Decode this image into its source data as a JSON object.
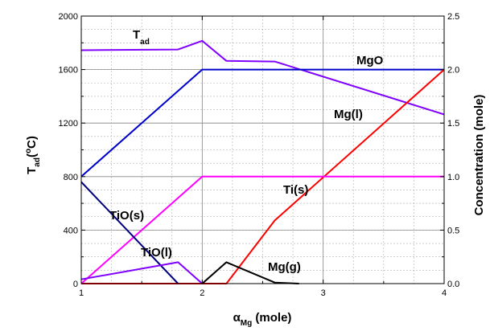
{
  "chart_data": {
    "type": "line",
    "title": "",
    "grid": true,
    "xaxis": {
      "label_main": "α",
      "label_sub": "Mg",
      "label_rest": " (mole)",
      "range": [
        1,
        4
      ],
      "ticks": [
        1,
        2,
        3,
        4
      ],
      "tick_labels": [
        "1",
        "2",
        "3",
        "4"
      ]
    },
    "yaxis_left": {
      "label_main": "T",
      "label_sub": "ad",
      "label_mid": "(",
      "label_sup": "o",
      "label_rest": "C)",
      "range": [
        0,
        2000
      ],
      "ticks": [
        0,
        400,
        800,
        1200,
        1600,
        2000
      ],
      "tick_labels": [
        "0",
        "400",
        "800",
        "1200",
        "1600",
        "2000"
      ]
    },
    "yaxis_right": {
      "label": "Concentration (mole)",
      "range": [
        0,
        2.5
      ],
      "ticks": [
        0,
        0.5,
        1.0,
        1.5,
        2.0,
        2.5
      ],
      "tick_labels": [
        "0.0",
        "0.5",
        "1.0",
        "1.5",
        "2.0",
        "2.5"
      ]
    },
    "series": [
      {
        "key": "tad",
        "label_main": "T",
        "label_sub": "ad",
        "axis": "left",
        "color": "#8000ff",
        "x": [
          1,
          1.8,
          2,
          2.2,
          2.6,
          4
        ],
        "y": [
          1745,
          1750,
          1815,
          1665,
          1660,
          1265
        ]
      },
      {
        "key": "mgo",
        "name": "MgO",
        "axis": "right",
        "color": "#0000cc",
        "x": [
          1,
          2,
          4
        ],
        "y": [
          1.0,
          2.0,
          2.0
        ]
      },
      {
        "key": "mgl",
        "name": "Mg(l)",
        "axis": "right",
        "color": "#ff0000",
        "x": [
          1,
          2.2,
          2.6,
          4
        ],
        "y": [
          0,
          0,
          0.59,
          2.0
        ]
      },
      {
        "key": "tis",
        "name": "Ti(s)",
        "axis": "right",
        "color": "#ff00ff",
        "x": [
          1,
          2,
          4
        ],
        "y": [
          0,
          1.0,
          1.0
        ]
      },
      {
        "key": "tios",
        "name": "TiO(s)",
        "axis": "right",
        "color": "#000080",
        "x": [
          1,
          1.8
        ],
        "y": [
          0.95,
          0
        ]
      },
      {
        "key": "tiol",
        "name": "TiO(l)",
        "axis": "right",
        "color": "#8000ff",
        "x": [
          1,
          1.8,
          2
        ],
        "y": [
          0.04,
          0.2,
          0
        ]
      },
      {
        "key": "mgg",
        "name": "Mg(g)",
        "axis": "right",
        "color": "#000000",
        "x": [
          2,
          2.2,
          2.6,
          2.8
        ],
        "y": [
          0,
          0.2,
          0.01,
          0
        ]
      }
    ]
  }
}
